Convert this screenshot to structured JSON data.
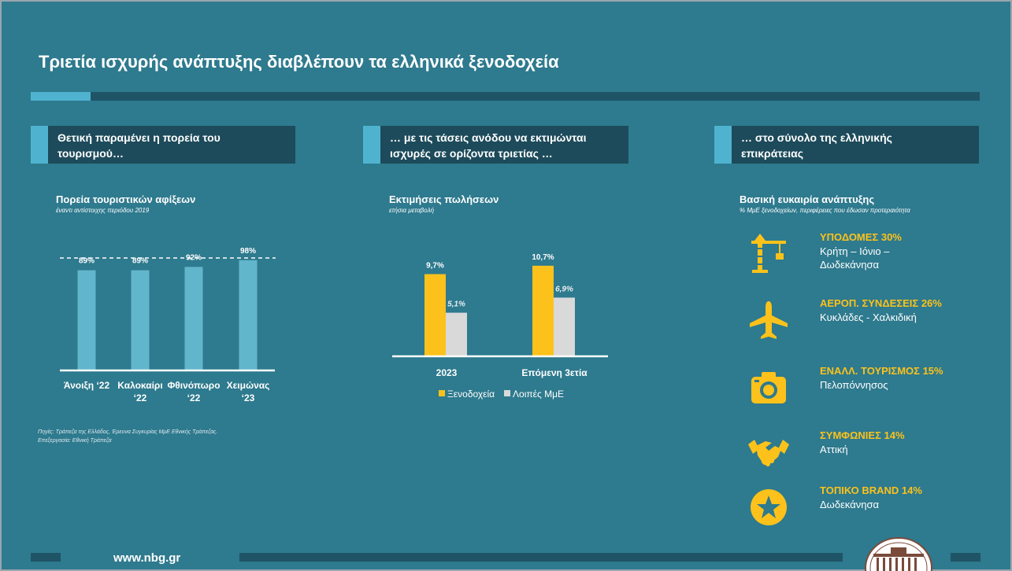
{
  "slide": {
    "title": "Τριετία ισχυρής ανάπτυξης διαβλέπουν τα ελληνικά ξενοδοχεία",
    "footer_url": "www.nbg.gr"
  },
  "panels": [
    {
      "header": "Θετική παραμένει η πορεία του τουρισμού…"
    },
    {
      "header": "… με τις τάσεις ανόδου να εκτιμώνται ισχυρές σε ορίζοντα τριετίας …"
    },
    {
      "header": "… στο σύνολο της ελληνικής επικράτειας"
    }
  ],
  "source_note": "Πηγές: Τράπεζα της Ελλάδος, Έρευνα Συγκυρίας ΜμΕ Εθνικής Τράπεζας. Επεξεργασία: Εθνική Τράπεζα",
  "chart_data": [
    {
      "type": "bar",
      "title": "Πορεία τουριστικών αφίξεων",
      "subtitle": "έναντι αντίστοιχης περιόδου 2019",
      "categories": [
        "Άνοιξη ‘22",
        "Καλοκαίρι ‘22",
        "Φθινόπωρο ‘22",
        "Χειμώνας ‘23"
      ],
      "values": [
        89,
        89,
        92,
        98
      ],
      "value_labels": [
        "89%",
        "89%",
        "92%",
        "98%"
      ],
      "reference_line": 100,
      "ylim": [
        0,
        100
      ],
      "color": "#62b6cc"
    },
    {
      "type": "bar",
      "title": "Εκτιμήσεις πωλήσεων",
      "subtitle": "ετήσια μεταβολή",
      "categories": [
        "2023",
        "Επόμενη 3ετία"
      ],
      "series": [
        {
          "name": "Ξενοδοχεία",
          "values": [
            9.7,
            10.7
          ],
          "labels": [
            "9,7%",
            "10,7%"
          ],
          "color": "#fcc21b"
        },
        {
          "name": "Λοιπές ΜμΕ",
          "values": [
            5.1,
            6.9
          ],
          "labels": [
            "5,1%",
            "6,9%"
          ],
          "color": "#d9d9d9"
        }
      ],
      "ylim": [
        0,
        12
      ],
      "legend": "bottom"
    }
  ],
  "opportunities": {
    "title": "Βασική ευκαιρία ανάπτυξης",
    "subtitle": "% ΜμΕ ξενοδοχείων, περιφέρειες που έδωσαν προτεραιότητα",
    "items": [
      {
        "icon": "crane-icon",
        "head": "ΥΠΟΔΟΜΕΣ 30%",
        "body": "Κρήτη – Ιόνιο –\nΔωδεκάνησα"
      },
      {
        "icon": "airplane-icon",
        "head": "ΑΕΡΟΠ. ΣΥΝΔΕΣΕΙΣ 26%",
        "body": "Κυκλάδες - Χαλκιδική"
      },
      {
        "icon": "camera-icon",
        "head": "ΕΝΑΛΛ. ΤΟΥΡΙΣΜΟΣ 15%",
        "body": "Πελοπόννησος"
      },
      {
        "icon": "handshake-icon",
        "head": "ΣΥΜΦΩΝΙΕΣ 14%",
        "body": "Αττική"
      },
      {
        "icon": "star-icon",
        "head": "ΤΟΠΙΚΟ BRAND 14%",
        "body": "Δωδεκάνησα"
      }
    ]
  },
  "colors": {
    "background": "#2e7a8e",
    "dark_band": "#1d4b5b",
    "accent": "#4fb3cf",
    "gold": "#fcc21b",
    "gray": "#d9d9d9"
  }
}
